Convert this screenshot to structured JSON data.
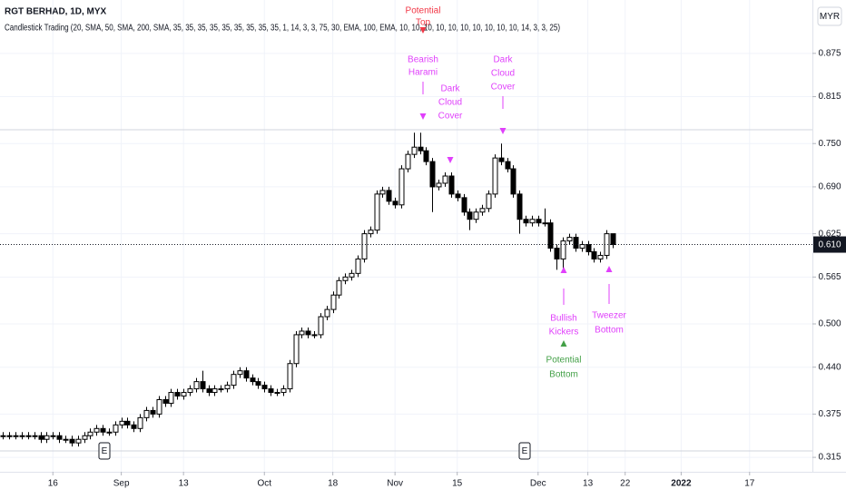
{
  "chart_data": {
    "type": "candlestick",
    "title": "RGT BERHAD, 1D, MYX",
    "subtitle": "Candlestick Trading (20, SMA, 50, SMA, 200, SMA, 35, 35, 35, 35, 35, 35, 35, 35, 35, 1, 14, 3, 3, 75, 30, EMA, 100, EMA, 10, 10, 10, 10, 10, 10, 10, 10, 10, 10, 14, 3, 3, 25)",
    "currency": "MYR",
    "up_color": "#ffffff",
    "down_color": "#000000",
    "edge_color": "#000000",
    "grid": true,
    "categories": [
      null,
      null,
      null,
      null,
      null,
      null,
      null,
      null,
      null,
      null,
      null,
      null,
      null,
      null,
      null,
      null,
      null,
      null,
      null,
      null,
      null,
      null,
      null,
      null,
      null,
      null,
      null,
      null,
      null,
      null,
      null,
      null,
      null,
      null,
      null,
      null,
      null,
      null,
      null,
      null,
      null,
      null,
      null,
      null,
      null,
      null,
      null,
      null,
      null,
      null,
      null,
      null,
      null,
      null,
      null,
      null,
      null,
      null,
      null,
      null,
      null,
      null,
      null,
      null,
      null,
      null,
      null,
      null,
      null,
      null,
      null,
      null,
      null,
      null,
      null,
      null,
      null,
      null,
      null,
      null,
      null,
      null,
      null,
      null,
      null,
      null,
      null,
      null,
      null,
      null,
      null,
      null,
      null,
      null,
      null,
      null,
      null,
      null,
      null
    ],
    "open": [
      0.345,
      0.345,
      0.345,
      0.345,
      0.345,
      0.345,
      0.345,
      0.34,
      0.345,
      0.345,
      0.34,
      0.34,
      0.335,
      0.34,
      0.345,
      0.35,
      0.355,
      0.35,
      0.35,
      0.36,
      0.365,
      0.36,
      0.355,
      0.37,
      0.38,
      0.375,
      0.395,
      0.39,
      0.405,
      0.4,
      0.405,
      0.41,
      0.42,
      0.41,
      0.405,
      0.41,
      0.41,
      0.415,
      0.43,
      0.435,
      0.425,
      0.42,
      0.415,
      0.41,
      0.405,
      0.405,
      0.41,
      0.445,
      0.485,
      0.49,
      0.485,
      0.485,
      0.51,
      0.52,
      0.54,
      0.56,
      0.565,
      0.57,
      0.59,
      0.625,
      0.63,
      0.68,
      0.685,
      0.67,
      0.665,
      0.715,
      0.735,
      0.745,
      0.74,
      0.725,
      0.69,
      0.695,
      0.705,
      0.68,
      0.675,
      0.655,
      0.645,
      0.655,
      0.66,
      0.68,
      0.73,
      0.725,
      0.715,
      0.68,
      0.645,
      0.64,
      0.645,
      0.64,
      0.64,
      0.605,
      0.59,
      0.615,
      0.62,
      0.605,
      0.61,
      0.6,
      0.59,
      0.595,
      0.625
    ],
    "high": [
      0.35,
      0.35,
      0.35,
      0.35,
      0.35,
      0.35,
      0.35,
      0.35,
      0.35,
      0.35,
      0.345,
      0.345,
      0.345,
      0.35,
      0.355,
      0.36,
      0.36,
      0.355,
      0.365,
      0.37,
      0.37,
      0.365,
      0.375,
      0.385,
      0.385,
      0.4,
      0.4,
      0.41,
      0.41,
      0.41,
      0.415,
      0.425,
      0.435,
      0.415,
      0.415,
      0.415,
      0.42,
      0.435,
      0.44,
      0.44,
      0.43,
      0.425,
      0.42,
      0.415,
      0.41,
      0.415,
      0.45,
      0.49,
      0.495,
      0.495,
      0.49,
      0.515,
      0.525,
      0.545,
      0.565,
      0.57,
      0.575,
      0.595,
      0.63,
      0.635,
      0.685,
      0.69,
      0.69,
      0.675,
      0.72,
      0.74,
      0.765,
      0.765,
      0.745,
      0.73,
      0.7,
      0.71,
      0.71,
      0.685,
      0.68,
      0.66,
      0.66,
      0.665,
      0.685,
      0.735,
      0.75,
      0.73,
      0.72,
      0.685,
      0.65,
      0.65,
      0.65,
      0.66,
      0.645,
      0.61,
      0.62,
      0.625,
      0.625,
      0.615,
      0.615,
      0.605,
      0.6,
      0.63,
      0.625
    ],
    "low": [
      0.34,
      0.34,
      0.34,
      0.34,
      0.34,
      0.34,
      0.335,
      0.335,
      0.34,
      0.335,
      0.335,
      0.33,
      0.33,
      0.335,
      0.34,
      0.345,
      0.345,
      0.345,
      0.345,
      0.355,
      0.355,
      0.35,
      0.35,
      0.365,
      0.37,
      0.37,
      0.385,
      0.385,
      0.395,
      0.395,
      0.4,
      0.405,
      0.405,
      0.4,
      0.4,
      0.405,
      0.405,
      0.41,
      0.425,
      0.42,
      0.415,
      0.41,
      0.405,
      0.4,
      0.4,
      0.4,
      0.405,
      0.44,
      0.48,
      0.48,
      0.48,
      0.48,
      0.505,
      0.515,
      0.535,
      0.555,
      0.56,
      0.565,
      0.585,
      0.62,
      0.625,
      0.675,
      0.665,
      0.66,
      0.66,
      0.71,
      0.73,
      0.735,
      0.72,
      0.655,
      0.685,
      0.69,
      0.675,
      0.67,
      0.65,
      0.63,
      0.64,
      0.65,
      0.655,
      0.675,
      0.72,
      0.71,
      0.675,
      0.625,
      0.635,
      0.635,
      0.635,
      0.635,
      0.6,
      0.575,
      0.575,
      0.61,
      0.6,
      0.6,
      0.595,
      0.585,
      0.585,
      0.59,
      0.605
    ],
    "close": [
      0.345,
      0.345,
      0.345,
      0.345,
      0.345,
      0.345,
      0.34,
      0.345,
      0.345,
      0.34,
      0.34,
      0.335,
      0.34,
      0.345,
      0.35,
      0.355,
      0.35,
      0.35,
      0.36,
      0.365,
      0.36,
      0.355,
      0.37,
      0.38,
      0.375,
      0.395,
      0.39,
      0.405,
      0.4,
      0.405,
      0.41,
      0.42,
      0.41,
      0.405,
      0.41,
      0.41,
      0.415,
      0.43,
      0.435,
      0.425,
      0.42,
      0.415,
      0.41,
      0.405,
      0.405,
      0.41,
      0.445,
      0.485,
      0.49,
      0.485,
      0.485,
      0.51,
      0.52,
      0.54,
      0.56,
      0.565,
      0.57,
      0.59,
      0.625,
      0.63,
      0.68,
      0.685,
      0.67,
      0.665,
      0.715,
      0.735,
      0.745,
      0.74,
      0.725,
      0.69,
      0.695,
      0.705,
      0.68,
      0.675,
      0.655,
      0.645,
      0.655,
      0.66,
      0.68,
      0.73,
      0.725,
      0.715,
      0.68,
      0.645,
      0.64,
      0.645,
      0.64,
      0.64,
      0.605,
      0.59,
      0.615,
      0.62,
      0.605,
      0.61,
      0.6,
      0.59,
      0.595,
      0.625,
      0.61
    ],
    "last_price": {
      "value": 0.61,
      "label": "0.610"
    },
    "xlim": [
      -0.5,
      130.1
    ],
    "xticks": [
      {
        "value": 8,
        "label": "16"
      },
      {
        "value": 19,
        "label": "Sep"
      },
      {
        "value": 29,
        "label": "13"
      },
      {
        "value": 42,
        "label": "Oct"
      },
      {
        "value": 53,
        "label": "18"
      },
      {
        "value": 63,
        "label": "Nov"
      },
      {
        "value": 73,
        "label": "15"
      },
      {
        "value": 86,
        "label": "Dec"
      },
      {
        "value": 94,
        "label": "13"
      },
      {
        "value": 100,
        "label": "22"
      },
      {
        "value": 109,
        "label": "2022"
      },
      {
        "value": 120,
        "label": "17"
      }
    ],
    "ylim": [
      0.295,
      0.949
    ],
    "yticks": [
      0.875,
      0.815,
      {
        "value": 0.75,
        "label": "0.750"
      },
      {
        "value": 0.69,
        "label": "0.690"
      },
      0.625,
      0.565,
      {
        "value": 0.5,
        "label": "0.500"
      },
      {
        "value": 0.44,
        "label": "0.440"
      },
      0.375,
      0.315
    ],
    "events": [
      "E",
      "E"
    ],
    "annotations": [
      {
        "text": [
          "Potential",
          "Top"
        ],
        "color": "#f23645",
        "marker": "down"
      },
      {
        "text": [
          "Bearish",
          "Harami"
        ],
        "color": "#e040fb",
        "marker": "down"
      },
      {
        "text": [
          "Dark",
          "Cloud",
          "Cover"
        ],
        "color": "#e040fb",
        "marker": "down"
      },
      {
        "text": [
          "Dark",
          "Cloud",
          "Cover"
        ],
        "color": "#e040fb",
        "marker": "down"
      },
      {
        "text": [
          "Bullish",
          "Kickers"
        ],
        "color": "#e040fb",
        "marker": "up"
      },
      {
        "text": [
          "Potential",
          "Bottom"
        ],
        "color": "#43a047",
        "marker": "up"
      },
      {
        "text": [
          "Tweezer",
          "Bottom"
        ],
        "color": "#e040fb",
        "marker": "up"
      }
    ]
  }
}
